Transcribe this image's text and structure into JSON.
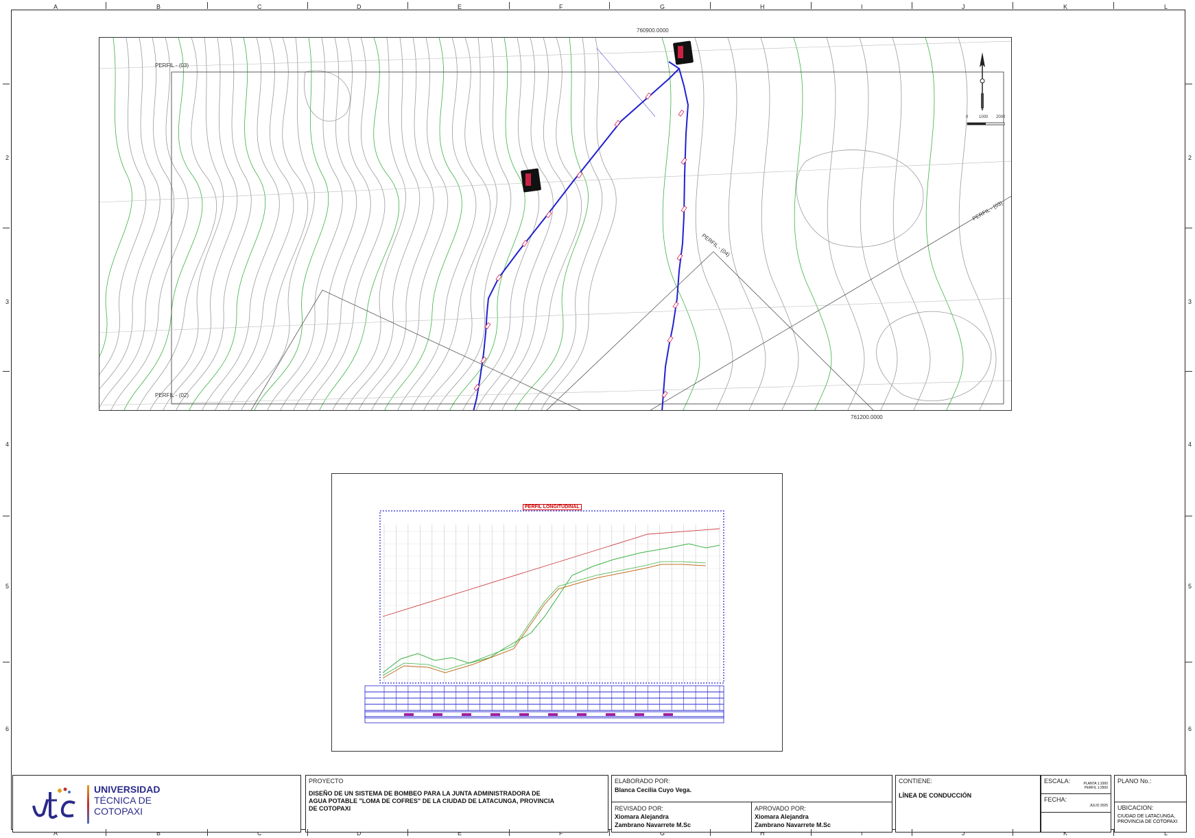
{
  "border": {
    "columns": [
      "A",
      "B",
      "C",
      "D",
      "E",
      "F",
      "G",
      "H",
      "I",
      "J",
      "K",
      "L"
    ],
    "rows": [
      "2",
      "3",
      "4",
      "5",
      "6"
    ]
  },
  "map": {
    "coord_top": "760900.0000",
    "coord_bottom": "761200.0000",
    "profile_labels": [
      "PERFIL - (03)",
      "PERFIL - (02)",
      "PERFIL - (04)",
      "PERFIL - (03)"
    ],
    "scale_bar_ticks": [
      "0",
      "1000",
      "2000"
    ]
  },
  "profile": {
    "title": "PERFIL LONGITUDINAL"
  },
  "title_block": {
    "logo": {
      "line1": "UNIVERSIDAD",
      "line2": "TÉCNICA DE",
      "line3": "COTOPAXI"
    },
    "proyecto_label": "PROYECTO",
    "proyecto_text": "DISEÑO DE UN SISTEMA DE BOMBEO PARA LA JUNTA ADMINISTRADORA DE AGUA POTABLE  \"LOMA DE COFRES\" DE LA CIUDAD DE LATACUNGA, PROVINCIA DE COTOPAXI",
    "elaborado_label": "ELABORADO POR:",
    "elaborado_value": "Blanca Cecilia Cuyo Vega.",
    "revisado_label": "REVISADO POR:",
    "revisado_value_1": "Xiomara Alejandra",
    "revisado_value_2": "Zambrano Navarrete M.Sc",
    "aprobado_label": "APROVADO POR:",
    "aprobado_value_1": "Xiomara Alejandra",
    "aprobado_value_2": "Zambrano Navarrete M.Sc",
    "contiene_label": "CONTIENE:",
    "contiene_value": "LÍNEA DE CONDUCCIÓN",
    "escala_label": "ESCALA:",
    "escala_value_1": "PLANTA 1:1000",
    "escala_value_2": "PERFIL 1:2500",
    "fecha_label": "FECHA:",
    "fecha_value": "JULIO 2025",
    "plano_label": "PLANO No.:",
    "ubicacion_label": "UBICACION:",
    "ubicacion_value": "CIUDAD DE LATACUNGA, PROVINCIA DE COTOPAXI"
  },
  "colors": {
    "pipe": "#2020d0",
    "contour_major": "#3cb043",
    "contour_minor": "#9a9a9a",
    "hydraulic_line": "#d04040",
    "profile_title": "#cc0000"
  }
}
